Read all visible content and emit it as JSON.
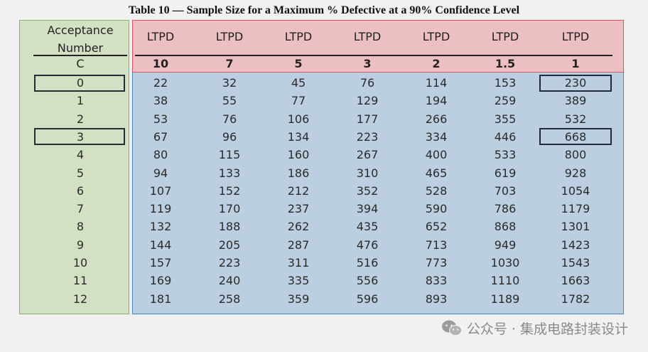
{
  "title": "Table 10 — Sample Size for a Maximum % Defective at a 90% Confidence Level",
  "acceptance_header": [
    "Acceptance",
    "Number"
  ],
  "c_label": "C",
  "ltpd_label": "LTPD",
  "ltpd_values": [
    "10",
    "7",
    "5",
    "3",
    "2",
    "1.5",
    "1"
  ],
  "acceptance_numbers": [
    "0",
    "1",
    "2",
    "3",
    "4",
    "5",
    "6",
    "7",
    "8",
    "9",
    "10",
    "11",
    "12"
  ],
  "rows": [
    [
      "22",
      "32",
      "45",
      "76",
      "114",
      "153",
      "230"
    ],
    [
      "38",
      "55",
      "77",
      "129",
      "194",
      "259",
      "389"
    ],
    [
      "53",
      "76",
      "106",
      "177",
      "266",
      "355",
      "532"
    ],
    [
      "67",
      "96",
      "134",
      "223",
      "334",
      "446",
      "668"
    ],
    [
      "80",
      "115",
      "160",
      "267",
      "400",
      "533",
      "800"
    ],
    [
      "94",
      "133",
      "186",
      "310",
      "465",
      "619",
      "928"
    ],
    [
      "107",
      "152",
      "212",
      "352",
      "528",
      "703",
      "1054"
    ],
    [
      "119",
      "170",
      "237",
      "394",
      "590",
      "786",
      "1179"
    ],
    [
      "132",
      "188",
      "262",
      "435",
      "652",
      "868",
      "1301"
    ],
    [
      "144",
      "205",
      "287",
      "476",
      "713",
      "949",
      "1423"
    ],
    [
      "157",
      "223",
      "311",
      "516",
      "773",
      "1030",
      "1543"
    ],
    [
      "169",
      "240",
      "335",
      "556",
      "833",
      "1110",
      "1663"
    ],
    [
      "181",
      "258",
      "359",
      "596",
      "893",
      "1189",
      "1782"
    ]
  ],
  "highlights": {
    "acceptance_rows": [
      0,
      3
    ],
    "cells": [
      [
        0,
        6
      ],
      [
        3,
        6
      ]
    ]
  },
  "watermark": "公众号 · 集成电路封装设计",
  "colors": {
    "acceptance_panel": "#d4e0c4",
    "acceptance_border": "#7fb85e",
    "ltpd_header_panel": "#ecc0c3",
    "ltpd_header_border": "#d9545b",
    "data_panel": "#bccfe0",
    "data_border": "#3f86c6"
  }
}
